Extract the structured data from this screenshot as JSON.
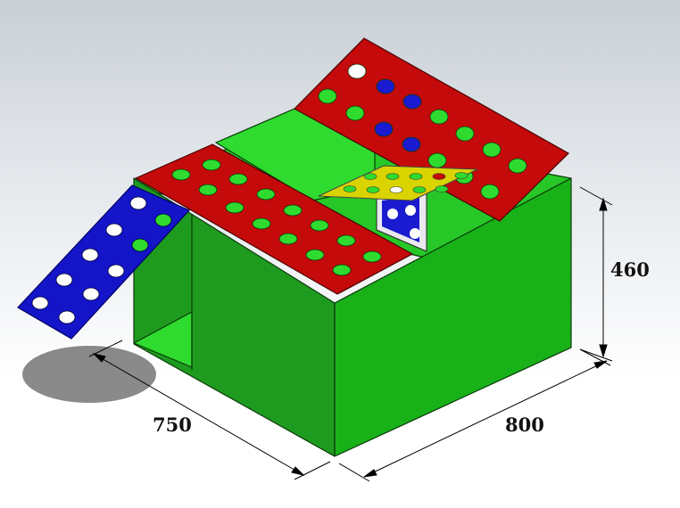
{
  "dimensions": {
    "length": "750",
    "width": "800",
    "height": "460"
  },
  "colors": {
    "box_front": "#1e9b1e",
    "box_right": "#16a316",
    "box_inner": "#26c726",
    "box_bright": "#2edb2e",
    "lid_red": "#c40a0a",
    "ramp_blue": "#1414c8",
    "plate_yellow": "#d9d400",
    "edge": "#0a3a0a",
    "hole": "#ffffff"
  }
}
